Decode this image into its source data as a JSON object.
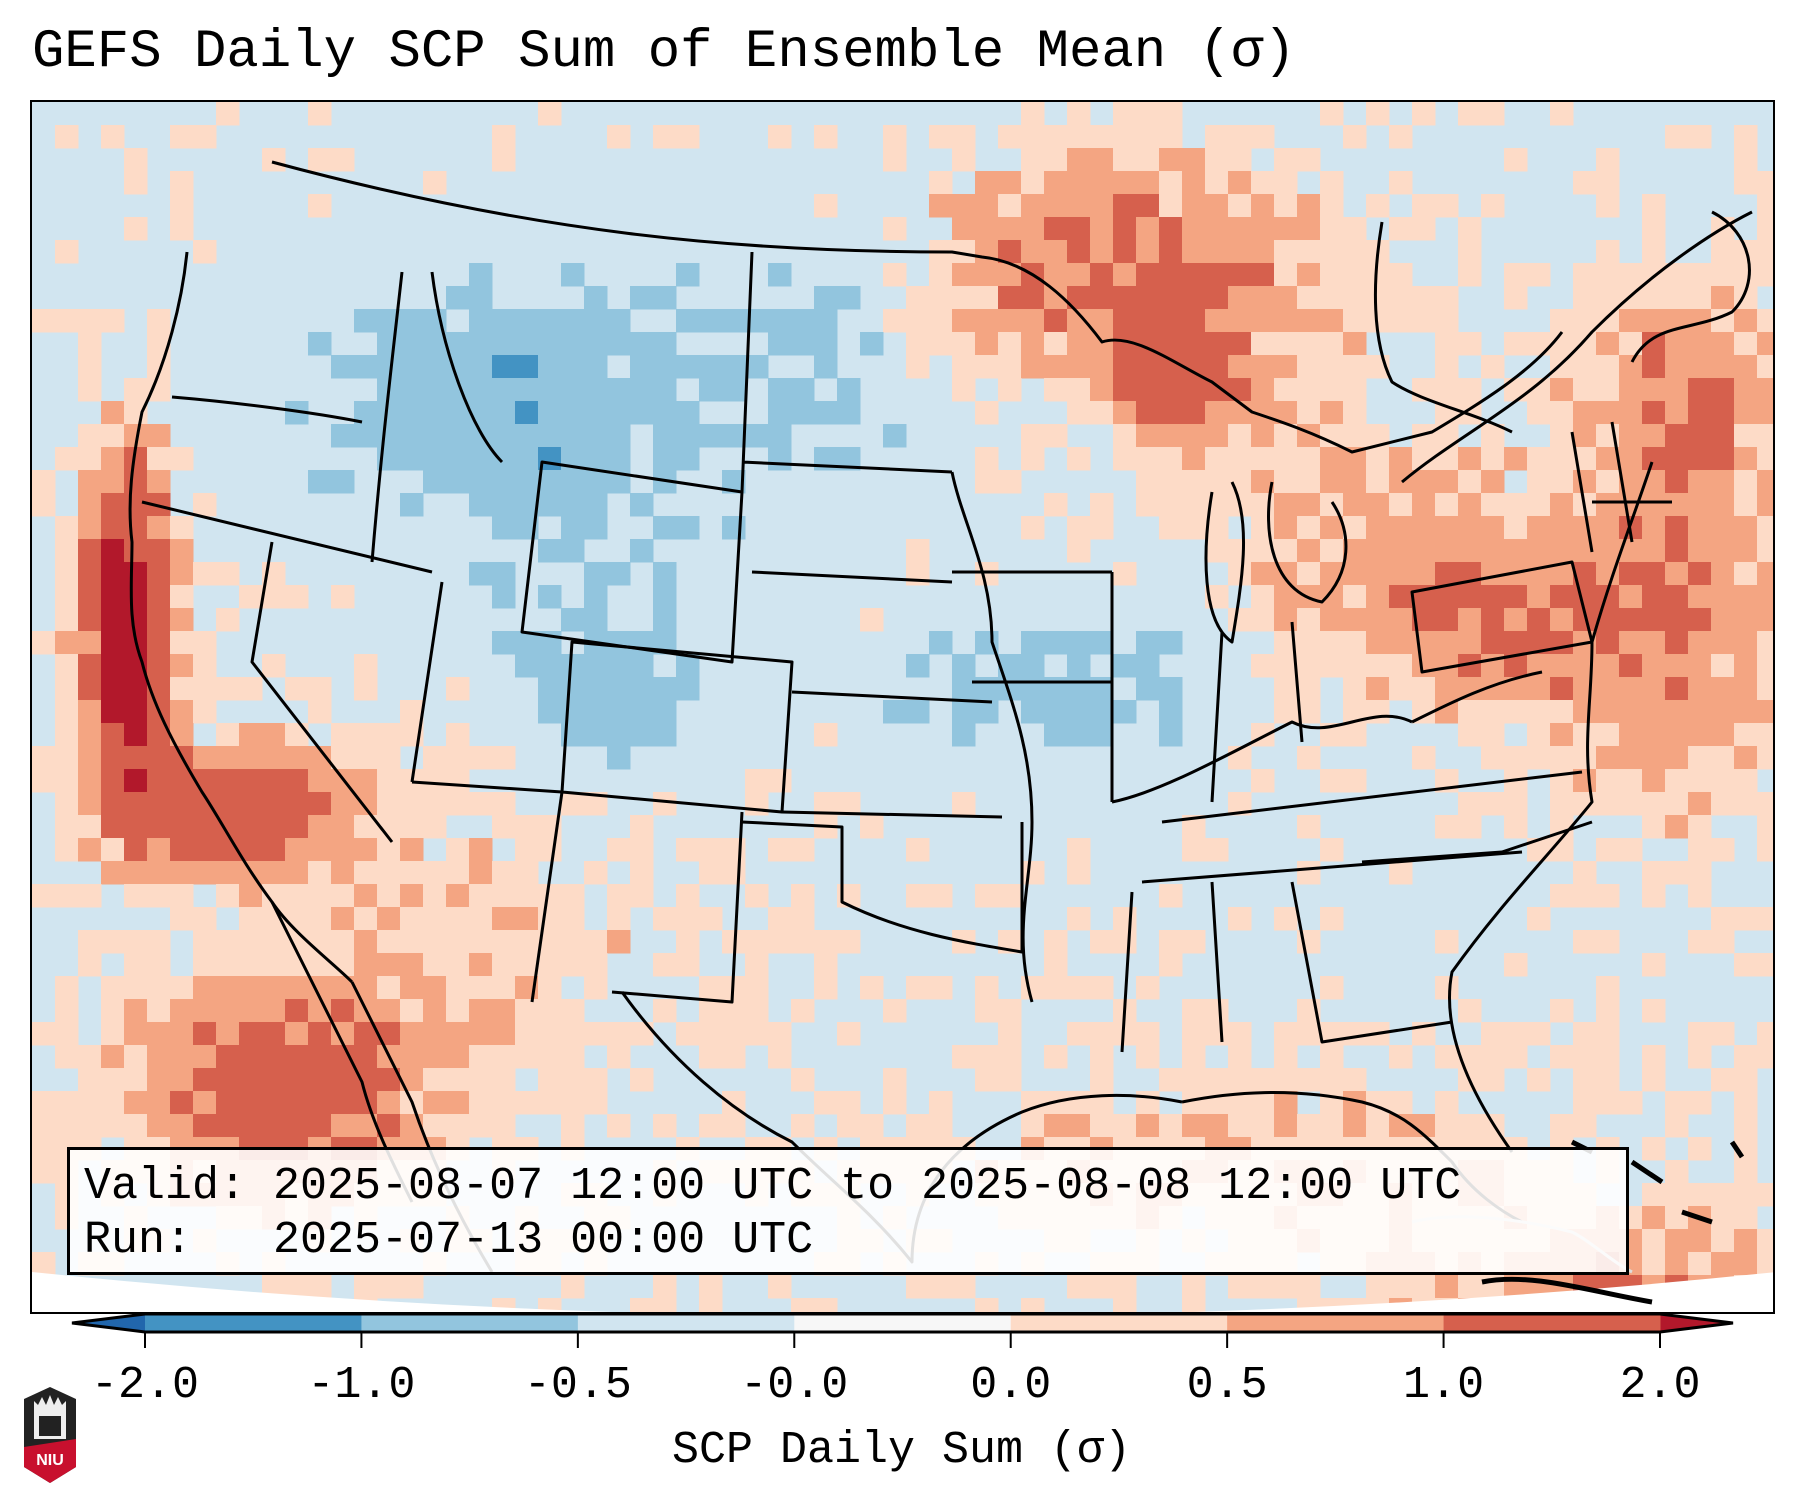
{
  "title": "GEFS Daily SCP Sum of Ensemble Mean (σ)",
  "info": {
    "valid_line": "Valid: 2025-08-07 12:00 UTC to 2025-08-08 12:00 UTC",
    "run_line": "Run:   2025-07-13 00:00 UTC"
  },
  "colorbar": {
    "label": "SCP Daily Sum (σ)",
    "ticks": [
      "-2.0",
      "-1.0",
      "-0.5",
      "-0.0",
      "0.0",
      "0.5",
      "1.0",
      "2.0"
    ],
    "colors": [
      "#4393c3",
      "#92c5de",
      "#d1e5f0",
      "#f7f7f7",
      "#fddbc7",
      "#f4a582",
      "#d6604d"
    ],
    "extend_low_color": "#2166ac",
    "extend_high_color": "#b2182b",
    "extend": "both"
  },
  "map": {
    "projection": "Lambert Conformal (CONUS)",
    "region": "Contiguous United States, southern Canada, northern Mexico, Caribbean",
    "background_value_color": "#d1e5f0",
    "features": [
      "state-borders",
      "country-borders",
      "coastlines"
    ],
    "anomaly_regions": [
      {
        "name": "California coast / offshore",
        "level": "2.0+"
      },
      {
        "name": "Baja California / Gulf of California",
        "level": "1.0-2.0"
      },
      {
        "name": "Pacific off Mexico",
        "level": "0.5-2.0"
      },
      {
        "name": "Ontario / Upper Great Lakes",
        "level": "0.5-2.0"
      },
      {
        "name": "Lake Superior north shore",
        "level": "1.0-2.0"
      },
      {
        "name": "Pennsylvania / Mid-Atlantic",
        "level": "0.5-1.0"
      },
      {
        "name": "West Virginia / Virginia",
        "level": "0.5-1.0"
      },
      {
        "name": "New England / Maine / Maritimes",
        "level": "0.5-1.0"
      },
      {
        "name": "Gulf of Mexico",
        "level": "0.0-0.5"
      },
      {
        "name": "Northern Rockies / Idaho / Montana",
        "level": "-1.0 to -0.5"
      },
      {
        "name": "Utah / Colorado",
        "level": "-1.0 to -0.5"
      },
      {
        "name": "Iowa / Nebraska",
        "level": "-1.0 to -0.5"
      }
    ]
  },
  "logo": {
    "text": "NIU",
    "icon": "niu-logo-icon"
  }
}
